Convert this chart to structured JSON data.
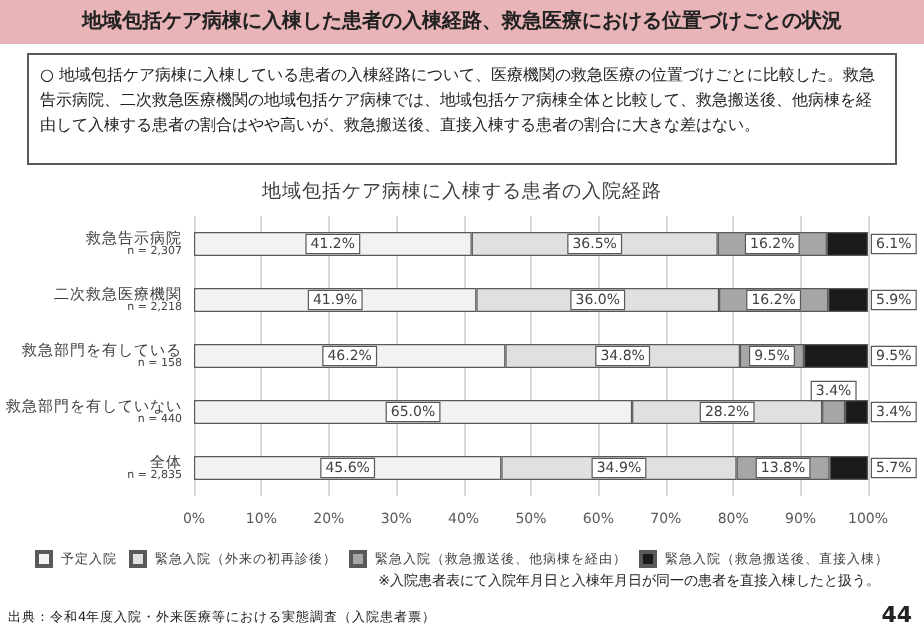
{
  "chart_data": {
    "type": "bar",
    "orientation": "horizontal",
    "stacked": true,
    "title": "地域包括ケア病棟に入棟した患者の入棟経路、救急医療における位置づけごとの状況",
    "subtitle": "地域包括ケア病棟に入棟する患者の入院経路",
    "annotations": [
      "○ 地域包括ケア病棟に入棟している患者の入棟経路について、医療機関の救急医療の位置づけごとに比較した。救急告示病院、二次救急医療機関の地域包括ケア病棟では、地域包括ケア病棟全体と比較して、救急搬送後、他病棟を経由して入棟する患者の割合はやや高いが、救急搬送後、直接入棟する患者の割合に大きな差はない。",
      "※入院患者表にて入院年月日と入棟年月日が同一の患者を直接入棟したと扱う。",
      "出典：令和4年度入院・外来医療等における実態調査（入院患者票）",
      "44"
    ],
    "categories": [
      "救急告示病院\nn = 2,307",
      "二次救急医療機関\nn = 2,218",
      "救急部門を有している\nn = 158",
      "救急部門を有していない\nn = 440",
      "全体\nn = 2,835"
    ],
    "series": [
      {
        "name": "予定入院",
        "color": "#f2f2f2",
        "values": [
          41.2,
          41.9,
          46.2,
          65.0,
          45.6
        ],
        "value_labels": [
          "41.2%",
          "41.9%",
          "46.2%",
          "65.0%",
          "45.6%"
        ]
      },
      {
        "name": "緊急入院（外来の初再診後）",
        "color": "#e0e0e0",
        "values": [
          36.5,
          36.0,
          34.8,
          28.2,
          34.9
        ],
        "value_labels": [
          "36.5%",
          "36.0%",
          "34.8%",
          "28.2%",
          "34.9%"
        ]
      },
      {
        "name": "緊急入院（救急搬送後、他病棟を経由）",
        "color": "#a6a6a6",
        "values": [
          16.2,
          16.2,
          9.5,
          3.4,
          13.8
        ],
        "value_labels": [
          "16.2%",
          "16.2%",
          "9.5%",
          "3.4%",
          "13.8%"
        ]
      },
      {
        "name": "緊急入院（救急搬送後、直接入棟）",
        "color": "#1a1a1a",
        "values": [
          6.1,
          5.9,
          9.5,
          3.4,
          5.7
        ],
        "value_labels": [
          "6.1%",
          "5.9%",
          "9.5%",
          "3.4%",
          "5.7%"
        ]
      }
    ],
    "xlim": [
      0,
      100
    ],
    "xticks": [
      {
        "value": 0,
        "label": "0%"
      },
      {
        "value": 10,
        "label": "10%"
      },
      {
        "value": 20,
        "label": "20%"
      },
      {
        "value": 30,
        "label": "30%"
      },
      {
        "value": 40,
        "label": "40%"
      },
      {
        "value": 50,
        "label": "50%"
      },
      {
        "value": 60,
        "label": "60%"
      },
      {
        "value": 70,
        "label": "70%"
      },
      {
        "value": 80,
        "label": "80%"
      },
      {
        "value": 90,
        "label": "90%"
      },
      {
        "value": 100,
        "label": "100%"
      }
    ],
    "grid": "x",
    "legend": "bottom"
  }
}
